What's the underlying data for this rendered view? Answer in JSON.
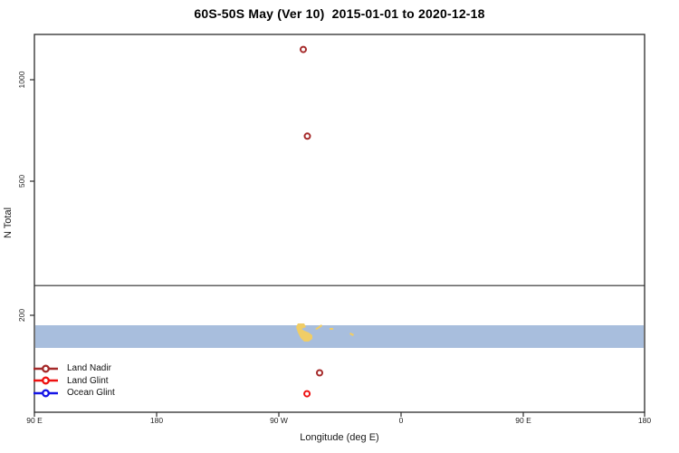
{
  "chart_data": {
    "type": "scatter",
    "title": "60S-50S May (Ver 10)  2015-01-01 to 2020-12-18",
    "xlabel": "Longitude (deg E)",
    "ylabel": "N Total",
    "y_scale": "log",
    "y_ticks": [
      200,
      500,
      1000
    ],
    "y_range_approx": [
      103,
      1365
    ],
    "x_tick_labels": [
      "90 E",
      "180",
      "90 W",
      "0",
      "90 E",
      "180"
    ],
    "x_tick_longitudes_deg_e": [
      90,
      180,
      -90,
      0,
      90,
      180
    ],
    "reference_line_n_total": 245,
    "map_band": {
      "description": "60S-50S latitude strip map drawn across plot",
      "ocean_color": "#a8bedd",
      "land_color": "#f0cd66",
      "land_features": [
        "southern South America (Patagonia / Tierra del Fuego)",
        "Falkland Islands",
        "small island speck",
        "South Georgia"
      ]
    },
    "series": [
      {
        "name": "Land Nadir",
        "color": "#a52a2a",
        "marker": "open-circle",
        "points": [
          {
            "lon_deg_e": -72,
            "n_total": 1230
          },
          {
            "lon_deg_e": -69,
            "n_total": 680
          },
          {
            "lon_deg_e": -60,
            "n_total": 135
          }
        ]
      },
      {
        "name": "Land Glint",
        "color": "#ee1111",
        "marker": "open-circle",
        "points": [
          {
            "lon_deg_e": -69.3,
            "n_total": 117
          }
        ]
      },
      {
        "name": "Ocean Glint",
        "color": "#1515e6",
        "marker": "open-circle",
        "points": []
      }
    ],
    "legend_position": "bottom-left-inside"
  }
}
